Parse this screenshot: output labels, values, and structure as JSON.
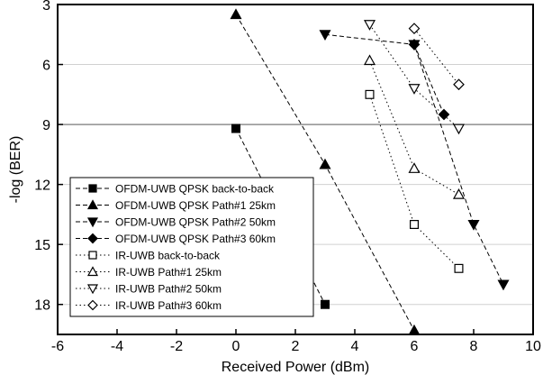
{
  "chart_data": {
    "type": "scatter",
    "xlabel": "Received Power (dBm)",
    "ylabel": "-log (BER)",
    "xlim": [
      -6,
      10
    ],
    "ylim": [
      3,
      19.5
    ],
    "y_reversed": true,
    "x_ticks": [
      -6,
      -4,
      -2,
      0,
      2,
      4,
      6,
      8,
      10
    ],
    "y_ticks": [
      3,
      6,
      9,
      12,
      15,
      18
    ],
    "grid": "partial-horizontal",
    "legend_position": "bottom-left",
    "series": [
      {
        "name": "OFDM-UWB QPSK back-to-back",
        "marker": "square-filled",
        "line": "dashed",
        "points": [
          [
            0,
            9.2
          ],
          [
            3,
            18
          ]
        ]
      },
      {
        "name": "OFDM-UWB QPSK Path#1 25km",
        "marker": "triangle-up-filled",
        "line": "dashed",
        "points": [
          [
            0,
            3.5
          ],
          [
            3,
            11
          ],
          [
            6,
            19.3
          ]
        ]
      },
      {
        "name": "OFDM-UWB QPSK Path#2 50km",
        "marker": "triangle-down-filled",
        "line": "dashed",
        "points": [
          [
            3,
            4.5
          ],
          [
            6,
            5
          ],
          [
            8,
            14
          ],
          [
            9,
            17
          ]
        ]
      },
      {
        "name": "OFDM-UWB QPSK Path#3 60km",
        "marker": "diamond-filled",
        "line": "dashed",
        "points": [
          [
            6,
            5
          ],
          [
            7,
            8.5
          ]
        ]
      },
      {
        "name": "IR-UWB back-to-back",
        "marker": "square-open",
        "line": "dotted",
        "points": [
          [
            4.5,
            7.5
          ],
          [
            6,
            14
          ],
          [
            7.5,
            16.2
          ]
        ]
      },
      {
        "name": "IR-UWB Path#1 25km",
        "marker": "triangle-up-open",
        "line": "dotted",
        "points": [
          [
            4.5,
            5.8
          ],
          [
            6,
            11.2
          ],
          [
            7.5,
            12.5
          ]
        ]
      },
      {
        "name": "IR-UWB Path#2 50km",
        "marker": "triangle-down-open",
        "line": "dotted",
        "points": [
          [
            4.5,
            4
          ],
          [
            6,
            7.2
          ],
          [
            7.5,
            9.2
          ]
        ]
      },
      {
        "name": "IR-UWB Path#3 60km",
        "marker": "diamond-open",
        "line": "dotted",
        "points": [
          [
            6,
            4.2
          ],
          [
            7.5,
            7
          ]
        ]
      }
    ]
  }
}
